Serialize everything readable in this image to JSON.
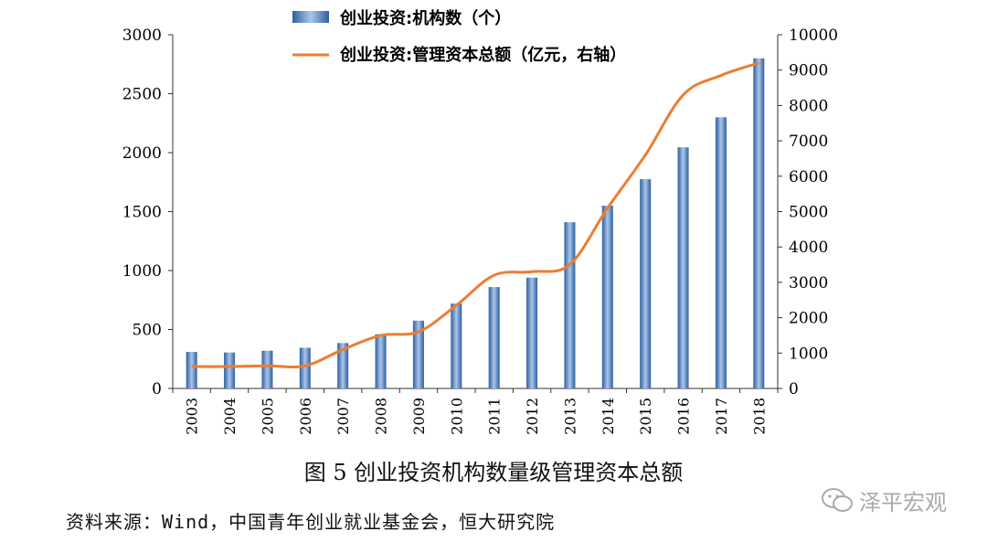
{
  "chart_data": {
    "type": "bar+line",
    "categories": [
      "2003",
      "2004",
      "2005",
      "2006",
      "2007",
      "2008",
      "2009",
      "2010",
      "2011",
      "2012",
      "2013",
      "2014",
      "2015",
      "2016",
      "2017",
      "2018"
    ],
    "series": [
      {
        "name": "创业投资:机构数（个）",
        "type": "bar",
        "axis": "left",
        "values": [
          310,
          305,
          320,
          345,
          385,
          460,
          575,
          720,
          860,
          940,
          1410,
          1550,
          1775,
          2045,
          2300,
          2800
        ]
      },
      {
        "name": "创业投资:管理资本总额（亿元，右轴）",
        "type": "line",
        "axis": "right",
        "values": [
          620,
          620,
          640,
          640,
          1100,
          1500,
          1600,
          2350,
          3200,
          3300,
          3500,
          5100,
          6600,
          8300,
          8850,
          9200
        ]
      }
    ],
    "left_axis": {
      "ylim": [
        0,
        3000
      ],
      "ticks": [
        "0",
        "500",
        "1000",
        "1500",
        "2000",
        "2500",
        "3000"
      ]
    },
    "right_axis": {
      "ylim": [
        0,
        10000
      ],
      "ticks": [
        "0",
        "1000",
        "2000",
        "3000",
        "4000",
        "5000",
        "6000",
        "7000",
        "8000",
        "9000",
        "10000"
      ]
    },
    "legend_position": "top-center",
    "colors": {
      "bar": "#4a78b8",
      "bar_light": "#a9c6ea",
      "line": "#ed7d31"
    }
  },
  "caption": "图 5  创业投资机构数量级管理资本总额",
  "source": "资料来源：Wind，中国青年创业就业基金会，恒大研究院",
  "watermark": "泽平宏观"
}
